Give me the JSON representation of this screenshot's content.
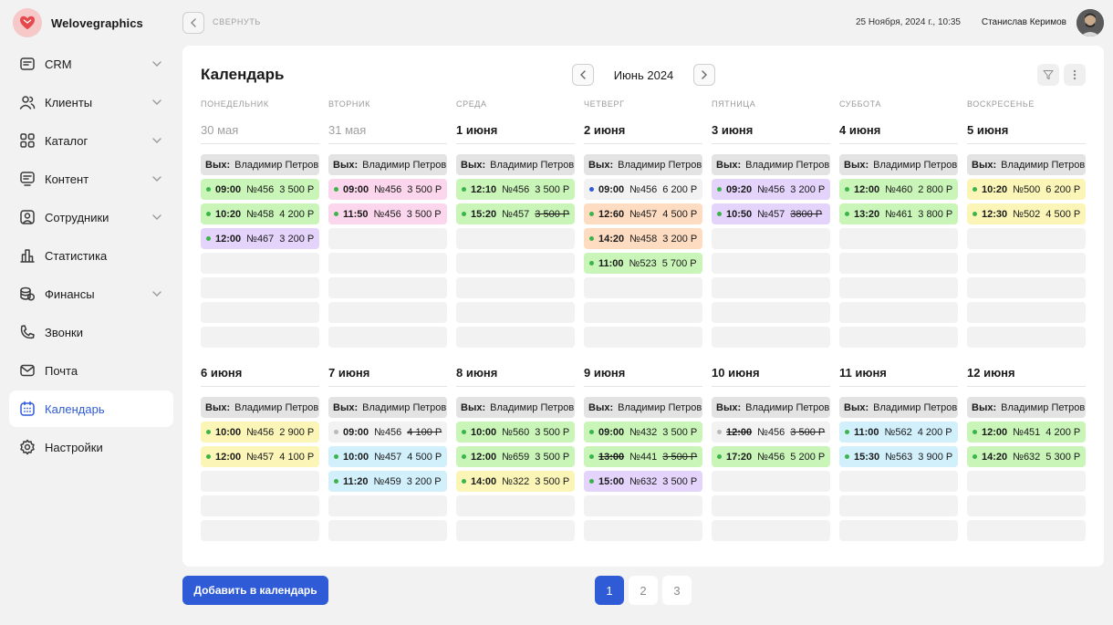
{
  "brand": {
    "name": "Welovegraphics"
  },
  "topbar": {
    "collapse_label": "СВЕРНУТЬ",
    "datetime": "25 Ноября, 2024 г., 10:35",
    "user_name": "Станислав Керимов"
  },
  "sidebar": {
    "items": [
      {
        "label": "CRM",
        "icon": "crm-icon",
        "has_chevron": true,
        "active": false
      },
      {
        "label": "Клиенты",
        "icon": "users-icon",
        "has_chevron": true,
        "active": false
      },
      {
        "label": "Каталог",
        "icon": "grid-icon",
        "has_chevron": true,
        "active": false
      },
      {
        "label": "Контент",
        "icon": "content-icon",
        "has_chevron": true,
        "active": false
      },
      {
        "label": "Сотрудники",
        "icon": "employee-icon",
        "has_chevron": true,
        "active": false
      },
      {
        "label": "Статистика",
        "icon": "chart-icon",
        "has_chevron": false,
        "active": false
      },
      {
        "label": "Финансы",
        "icon": "coins-icon",
        "has_chevron": true,
        "active": false
      },
      {
        "label": "Звонки",
        "icon": "phone-icon",
        "has_chevron": false,
        "active": false
      },
      {
        "label": "Почта",
        "icon": "mail-icon",
        "has_chevron": false,
        "active": false
      },
      {
        "label": "Календарь",
        "icon": "calendar-icon",
        "has_chevron": false,
        "active": true
      },
      {
        "label": "Настройки",
        "icon": "settings-icon",
        "has_chevron": false,
        "active": false
      }
    ]
  },
  "calendar": {
    "title": "Календарь",
    "month": "Июнь 2024",
    "off_label": "Вых:",
    "off_person": "Владимир Петров",
    "weekdays": [
      "ПОНЕДЕЛЬНИК",
      "ВТОРНИК",
      "СРЕДА",
      "ЧЕТВЕРГ",
      "ПЯТНИЦА",
      "СУББОТА",
      "ВОСКРЕСЕНЬЕ"
    ],
    "weeks": [
      {
        "days": [
          {
            "title": "30 мая",
            "muted": true,
            "slots": 7,
            "events": [
              {
                "time": "09:00",
                "num": "№456",
                "price": "3 500 Р",
                "color": "green",
                "dot": "#3bb54a"
              },
              {
                "time": "10:20",
                "num": "№458",
                "price": "4 200 Р",
                "color": "green",
                "dot": "#3bb54a"
              },
              {
                "time": "12:00",
                "num": "№467",
                "price": "3 200 Р",
                "color": "purple",
                "dot": "#3bb54a"
              }
            ]
          },
          {
            "title": "31 мая",
            "muted": true,
            "slots": 7,
            "events": [
              {
                "time": "09:00",
                "num": "№456",
                "price": "3 500 Р",
                "color": "pink",
                "dot": "#3bb54a"
              },
              {
                "time": "11:50",
                "num": "№456",
                "price": "3 500 Р",
                "color": "pink",
                "dot": "#3bb54a"
              }
            ]
          },
          {
            "title": "1 июня",
            "muted": false,
            "slots": 7,
            "events": [
              {
                "time": "12:10",
                "num": "№456",
                "price": "3 500 Р",
                "color": "green",
                "dot": "#3bb54a"
              },
              {
                "time": "15:20",
                "num": "№457",
                "price": "3 500 Р",
                "color": "green",
                "dot": "#3bb54a",
                "strike": true
              }
            ]
          },
          {
            "title": "2 июня",
            "muted": false,
            "slots": 7,
            "events": [
              {
                "time": "09:00",
                "num": "№456",
                "price": "6 200 Р",
                "color": "white",
                "dot": "#2f5bd6"
              },
              {
                "time": "12:60",
                "num": "№457",
                "price": "4 500 Р",
                "color": "orange",
                "dot": "#3bb54a"
              },
              {
                "time": "14:20",
                "num": "№458",
                "price": "3 200 Р",
                "color": "orange",
                "dot": "#3bb54a"
              },
              {
                "time": "11:00",
                "num": "№523",
                "price": "5 700 Р",
                "color": "green",
                "dot": "#3bb54a"
              }
            ]
          },
          {
            "title": "3 июня",
            "muted": false,
            "slots": 7,
            "events": [
              {
                "time": "09:20",
                "num": "№456",
                "price": "3 200 Р",
                "color": "purple",
                "dot": "#3bb54a"
              },
              {
                "time": "10:50",
                "num": "№457",
                "price": "3800 Р",
                "color": "purple",
                "dot": "#3bb54a",
                "strike": true
              }
            ]
          },
          {
            "title": "4 июня",
            "muted": false,
            "slots": 7,
            "events": [
              {
                "time": "12:00",
                "num": "№460",
                "price": "2 800 Р",
                "color": "green",
                "dot": "#3bb54a"
              },
              {
                "time": "13:20",
                "num": "№461",
                "price": "3 800 Р",
                "color": "green",
                "dot": "#3bb54a"
              }
            ]
          },
          {
            "title": "5 июня",
            "muted": false,
            "slots": 7,
            "events": [
              {
                "time": "10:20",
                "num": "№500",
                "price": "6 200 Р",
                "color": "yellow",
                "dot": "#3bb54a"
              },
              {
                "time": "12:30",
                "num": "№502",
                "price": "4 500 Р",
                "color": "yellow",
                "dot": "#3bb54a"
              }
            ]
          }
        ]
      },
      {
        "days": [
          {
            "title": "6 июня",
            "muted": false,
            "slots": 5,
            "events": [
              {
                "time": "10:00",
                "num": "№456",
                "price": "2 900 Р",
                "color": "yellow",
                "dot": "#3bb54a"
              },
              {
                "time": "12:00",
                "num": "№457",
                "price": "4 100 Р",
                "color": "yellow",
                "dot": "#3bb54a"
              }
            ]
          },
          {
            "title": "7 июня",
            "muted": false,
            "slots": 5,
            "events": [
              {
                "time": "09:00",
                "num": "№456",
                "price": "4 100 Р",
                "color": "white",
                "dot": "#b9b9b9",
                "strike": true
              },
              {
                "time": "10:00",
                "num": "№457",
                "price": "4 500 Р",
                "color": "blue",
                "dot": "#3bb54a"
              },
              {
                "time": "11:20",
                "num": "№459",
                "price": "3 200 Р",
                "color": "blue",
                "dot": "#3bb54a"
              }
            ]
          },
          {
            "title": "8 июня",
            "muted": false,
            "slots": 5,
            "events": [
              {
                "time": "10:00",
                "num": "№560",
                "price": "3 500 Р",
                "color": "green",
                "dot": "#3bb54a"
              },
              {
                "time": "12:00",
                "num": "№659",
                "price": "3 500 Р",
                "color": "green",
                "dot": "#3bb54a"
              },
              {
                "time": "14:00",
                "num": "№322",
                "price": "3 500 Р",
                "color": "yellow",
                "dot": "#3bb54a"
              }
            ]
          },
          {
            "title": "9 июня",
            "muted": false,
            "slots": 5,
            "events": [
              {
                "time": "09:00",
                "num": "№432",
                "price": "3 500 Р",
                "color": "green",
                "dot": "#3bb54a"
              },
              {
                "time": "13:00",
                "num": "№441",
                "price": "3 500 Р",
                "color": "green",
                "dot": "#3bb54a",
                "strike": true,
                "strike_time": true
              },
              {
                "time": "15:00",
                "num": "№632",
                "price": "3 500 Р",
                "color": "purple",
                "dot": "#3bb54a"
              }
            ]
          },
          {
            "title": "10 июня",
            "muted": false,
            "slots": 5,
            "events": [
              {
                "time": "12:00",
                "num": "№456",
                "price": "3 500 Р",
                "color": "white",
                "dot": "#b9b9b9",
                "strike": true,
                "strike_time": true
              },
              {
                "time": "17:20",
                "num": "№456",
                "price": "5 200 Р",
                "color": "green",
                "dot": "#3bb54a"
              }
            ]
          },
          {
            "title": "11 июня",
            "muted": false,
            "slots": 5,
            "events": [
              {
                "time": "11:00",
                "num": "№562",
                "price": "4 200 Р",
                "color": "blue",
                "dot": "#3bb54a"
              },
              {
                "time": "15:30",
                "num": "№563",
                "price": "3 900 Р",
                "color": "blue",
                "dot": "#3bb54a"
              }
            ]
          },
          {
            "title": "12 июня",
            "muted": false,
            "slots": 5,
            "events": [
              {
                "time": "12:00",
                "num": "№451",
                "price": "4 200 Р",
                "color": "green",
                "dot": "#3bb54a"
              },
              {
                "time": "14:20",
                "num": "№632",
                "price": "5 300 Р",
                "color": "green",
                "dot": "#3bb54a"
              }
            ]
          }
        ]
      }
    ]
  },
  "actions": {
    "add_label": "Добавить в календарь"
  },
  "pagination": {
    "pages": [
      "1",
      "2",
      "3"
    ],
    "current": "1"
  },
  "colors": {
    "accent": "#2f5bd6",
    "logo": "#e5484d"
  }
}
